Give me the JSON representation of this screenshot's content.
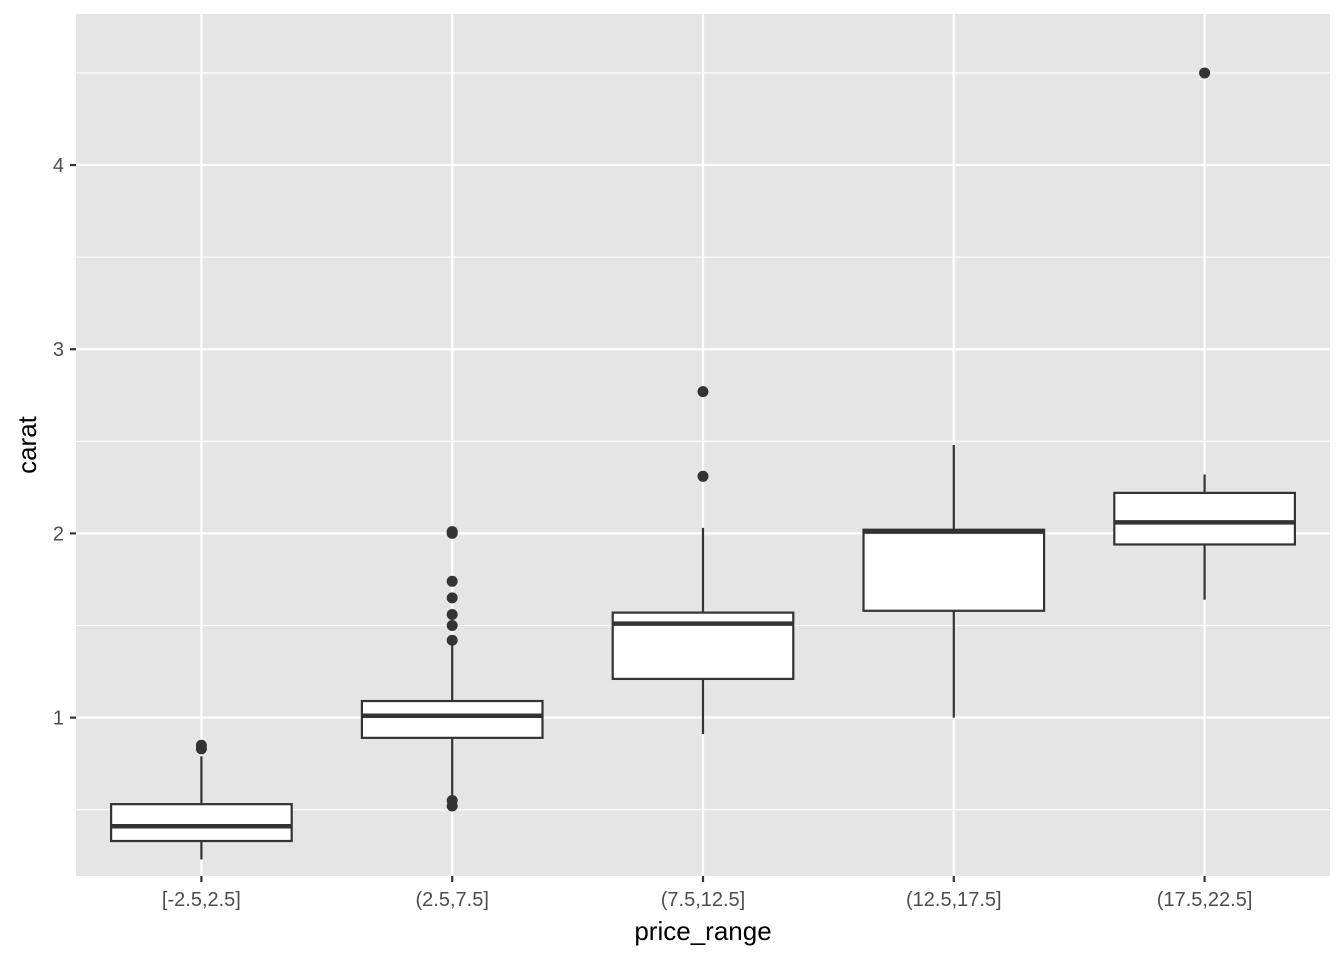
{
  "chart_data": {
    "type": "boxplot",
    "title": "",
    "xlabel": "price_range",
    "ylabel": "carat",
    "categories": [
      "[-2.5,2.5]",
      "(2.5,7.5]",
      "(7.5,12.5]",
      "(12.5,17.5]",
      "(17.5,22.5]"
    ],
    "ylim": [
      0.14,
      4.82
    ],
    "y_ticks": [
      1,
      2,
      3,
      4
    ],
    "grid": true,
    "panel_background": "#e5e5e5",
    "grid_color": "#ffffff",
    "box_fill": "#ffffff",
    "box_stroke": "#333333",
    "outlier_color": "#333333",
    "boxes": [
      {
        "category": "[-2.5,2.5]",
        "whisker_low": 0.23,
        "q1": 0.33,
        "median": 0.41,
        "q3": 0.53,
        "whisker_high": 0.79,
        "outliers": [
          0.83,
          0.85
        ]
      },
      {
        "category": "(2.5,7.5]",
        "whisker_low": 0.58,
        "q1": 0.89,
        "median": 1.01,
        "q3": 1.09,
        "whisker_high": 1.4,
        "outliers": [
          0.52,
          0.55,
          1.42,
          1.5,
          1.56,
          1.65,
          1.74,
          2.0,
          2.01
        ]
      },
      {
        "category": "(7.5,12.5]",
        "whisker_low": 0.91,
        "q1": 1.21,
        "median": 1.51,
        "q3": 1.57,
        "whisker_high": 2.03,
        "outliers": [
          2.31,
          2.77
        ]
      },
      {
        "category": "(12.5,17.5]",
        "whisker_low": 1.0,
        "q1": 1.58,
        "median": 2.01,
        "q3": 2.02,
        "whisker_high": 2.48,
        "outliers": []
      },
      {
        "category": "(17.5,22.5]",
        "whisker_low": 1.64,
        "q1": 1.94,
        "median": 2.06,
        "q3": 2.22,
        "whisker_high": 2.32,
        "outliers": [
          4.5
        ]
      }
    ]
  }
}
